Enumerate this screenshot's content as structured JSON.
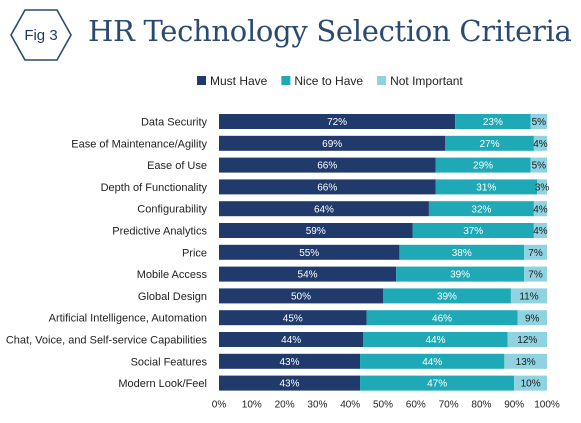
{
  "badge": {
    "text": "Fig 3"
  },
  "title": "HR Technology Selection Criteria",
  "colors": {
    "must": "#1f3a6b",
    "nice": "#1fa9b6",
    "not": "#8fd3e0",
    "badge_border": "#2a4a72"
  },
  "chart_data": {
    "type": "bar",
    "orientation": "horizontal",
    "stacked": true,
    "title": "HR Technology Selection Criteria",
    "categories": [
      "Data Security",
      "Ease of Maintenance/Agility",
      "Ease of Use",
      "Depth of Functionality",
      "Configurability",
      "Predictive Analytics",
      "Price",
      "Mobile Access",
      "Global Design",
      "Artificial Intelligence, Automation",
      "Chat, Voice, and Self-service Capabilities",
      "Social Features",
      "Modern Look/Feel"
    ],
    "series": [
      {
        "name": "Must Have",
        "color": "#1f3a6b",
        "values": [
          72,
          69,
          66,
          66,
          64,
          59,
          55,
          54,
          50,
          45,
          44,
          43,
          43
        ]
      },
      {
        "name": "Nice to Have",
        "color": "#1fa9b6",
        "values": [
          23,
          27,
          29,
          31,
          32,
          37,
          38,
          39,
          39,
          46,
          44,
          44,
          47
        ]
      },
      {
        "name": "Not Important",
        "color": "#8fd3e0",
        "values": [
          5,
          4,
          5,
          3,
          4,
          4,
          7,
          7,
          11,
          9,
          12,
          13,
          10
        ]
      }
    ],
    "xlim": [
      0,
      100
    ],
    "xticks": [
      "0%",
      "10%",
      "20%",
      "30%",
      "40%",
      "50%",
      "60%",
      "70%",
      "80%",
      "90%",
      "100%"
    ],
    "legend_position": "top",
    "grid": false
  }
}
